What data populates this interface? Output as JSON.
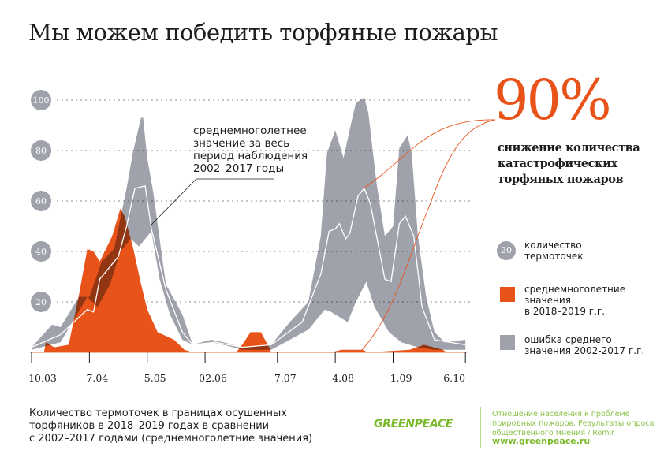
{
  "title": "Мы можем победить торфяные пожары",
  "highlight": {
    "value": "90%",
    "text_lines": [
      "снижение количества",
      "катастрофических",
      "торфяных пожаров"
    ]
  },
  "annotation": {
    "lines": [
      "среднемноголетнее",
      "значение за весь",
      "период наблюдения",
      "2002–2017 годы"
    ]
  },
  "legend": {
    "circle_sample": "20",
    "items": [
      {
        "lines": [
          "количество",
          "термоточек"
        ]
      },
      {
        "lines": [
          "среднемноголетние",
          "значения",
          "в 2018–2019 г.г."
        ]
      },
      {
        "lines": [
          "ошибка среднего",
          "значения 2002-2017 г.г."
        ]
      }
    ]
  },
  "caption": [
    "Количество термоточек в границах осушенных",
    "торфяников в 2018–2019 годах в сравнении",
    "с 2002–2017 годами (среднемноголетние значения)"
  ],
  "footer": {
    "logo": "GREENPEACE",
    "source_lines": [
      "Отношение населения к проблеме",
      "природных пожаров. Результаты опроса",
      "общественного мнения / Romir"
    ],
    "url": "www.greenpeace.ru"
  },
  "colors": {
    "orange": "#e8531a",
    "gray": "#a0a2ab",
    "green": "#7ab929",
    "mean_line": "#ffffff"
  },
  "chart_data": {
    "type": "area",
    "x_unit": "days since 10.03",
    "xlim": [
      0,
      210
    ],
    "ylim": [
      0,
      100
    ],
    "ylabel": "количество термоточек",
    "y_ticks": [
      20,
      40,
      60,
      80,
      100
    ],
    "x_ticks": [
      {
        "day": 0,
        "label": "10.03"
      },
      {
        "day": 28,
        "label": "7.04"
      },
      {
        "day": 56,
        "label": "5.05"
      },
      {
        "day": 84,
        "label": "02.06"
      },
      {
        "day": 119,
        "label": "7.07"
      },
      {
        "day": 147,
        "label": "4.08"
      },
      {
        "day": 175,
        "label": "1.09"
      },
      {
        "day": 210,
        "label": "6.10"
      }
    ],
    "grid": true,
    "series": [
      {
        "name": "ошибка среднего 2002-2017 (верхняя граница)",
        "key": "upper",
        "x": [
          0,
          10,
          14,
          23,
          28,
          34,
          40,
          46,
          49,
          53,
          54,
          56,
          59,
          65,
          73,
          78,
          87,
          93,
          102,
          116,
          125,
          134,
          140,
          143,
          147,
          151,
          155,
          157,
          161,
          163,
          167,
          171,
          175,
          178,
          182,
          184,
          187,
          191,
          195,
          200,
          210
        ],
        "y": [
          2,
          11,
          10,
          22,
          22,
          36,
          41,
          65,
          79,
          93,
          93,
          77,
          63,
          27,
          15,
          3,
          5,
          4,
          2,
          3,
          12,
          20,
          46,
          79,
          88,
          77,
          92,
          99,
          101,
          95,
          67,
          46,
          50,
          81,
          86,
          79,
          46,
          22,
          8,
          4,
          5
        ]
      },
      {
        "name": "ошибка среднего 2002-2017 (нижняя граница)",
        "key": "lower",
        "x": [
          0,
          14,
          27,
          32,
          38,
          43,
          48,
          52,
          58,
          62,
          67,
          73,
          78,
          87,
          93,
          102,
          116,
          125,
          134,
          142,
          145,
          153,
          157,
          162,
          166,
          173,
          179,
          187,
          195,
          210
        ],
        "y": [
          1,
          4,
          22,
          18,
          27,
          40,
          45,
          42,
          48,
          29,
          15,
          5,
          3,
          4,
          3,
          1,
          1,
          5,
          9,
          17,
          16,
          12,
          20,
          28,
          18,
          8,
          4,
          2,
          1,
          1
        ]
      },
      {
        "name": "среднемноголетнее значение 2002–2017",
        "key": "mean",
        "x": [
          0,
          14,
          27,
          30,
          33,
          42,
          46,
          50,
          55,
          58,
          65,
          73,
          78,
          89,
          102,
          116,
          131,
          140,
          144,
          147,
          149,
          152,
          154,
          158,
          161,
          164,
          171,
          174,
          178,
          181,
          185,
          189,
          195,
          210
        ],
        "y": [
          2,
          7,
          17,
          16,
          29,
          38,
          50,
          65,
          66,
          49,
          25,
          8,
          3,
          4,
          2,
          3,
          12,
          31,
          48,
          49,
          51,
          45,
          47,
          62,
          65,
          59,
          29,
          28,
          51,
          54,
          46,
          18,
          5,
          3
        ]
      },
      {
        "name": "среднемноголетние значения в 2018–2019 г.г.",
        "key": "recent",
        "x": [
          6,
          7,
          11,
          18,
          23,
          27,
          30,
          33,
          39,
          43,
          45,
          49,
          53,
          56,
          61,
          69,
          74,
          78,
          99,
          102,
          106,
          111,
          115,
          116,
          145,
          150,
          160,
          163,
          183,
          190,
          199,
          201,
          210
        ],
        "y": [
          0,
          4,
          2,
          3,
          23,
          41,
          40,
          36,
          46,
          57,
          54,
          42,
          27,
          17,
          8,
          5,
          1,
          0,
          0,
          3,
          8,
          8,
          2,
          0,
          0,
          1,
          1,
          0,
          1,
          3,
          1,
          0,
          0
        ]
      }
    ]
  }
}
